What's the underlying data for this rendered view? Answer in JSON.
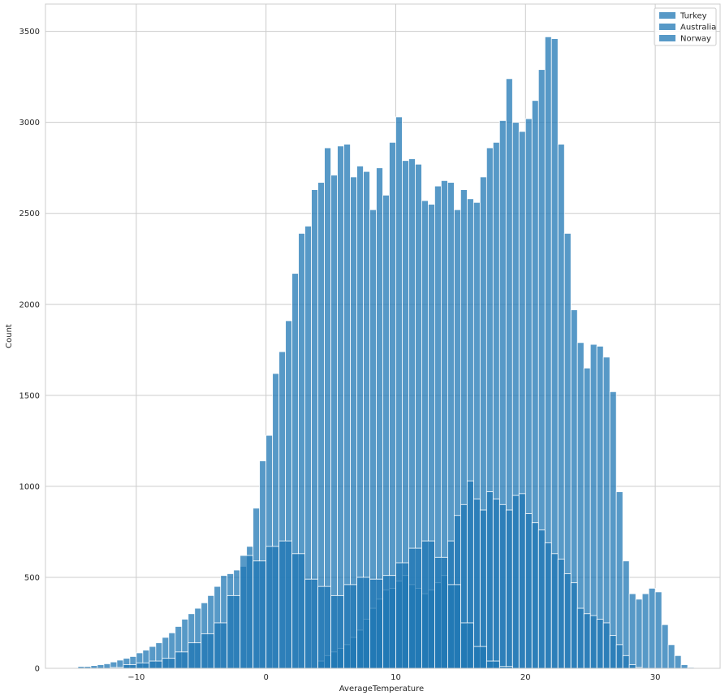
{
  "chart_data": {
    "type": "bar",
    "subtype": "overlaid-histogram",
    "xlabel": "AverageTemperature",
    "ylabel": "Count",
    "xlim": [
      -17,
      35
    ],
    "ylim": [
      0,
      3650
    ],
    "xticks": [
      -10,
      0,
      10,
      20,
      30
    ],
    "yticks": [
      0,
      500,
      1000,
      1500,
      2000,
      2500,
      3000,
      3500
    ],
    "grid": true,
    "legend_position": "top-right",
    "bar_color": "#1f77b4",
    "series": [
      {
        "name": "Turkey",
        "bin_width": 0.5,
        "bins": [
          {
            "x0": -14.5,
            "count": 10
          },
          {
            "x0": -14,
            "count": 10
          },
          {
            "x0": -13.5,
            "count": 15
          },
          {
            "x0": -13,
            "count": 20
          },
          {
            "x0": -12.5,
            "count": 25
          },
          {
            "x0": -12,
            "count": 35
          },
          {
            "x0": -11.5,
            "count": 45
          },
          {
            "x0": -11,
            "count": 55
          },
          {
            "x0": -10.5,
            "count": 65
          },
          {
            "x0": -10,
            "count": 85
          },
          {
            "x0": -9.5,
            "count": 100
          },
          {
            "x0": -9,
            "count": 120
          },
          {
            "x0": -8.5,
            "count": 140
          },
          {
            "x0": -8,
            "count": 170
          },
          {
            "x0": -7.5,
            "count": 195
          },
          {
            "x0": -7,
            "count": 230
          },
          {
            "x0": -6.5,
            "count": 270
          },
          {
            "x0": -6,
            "count": 300
          },
          {
            "x0": -5.5,
            "count": 330
          },
          {
            "x0": -5,
            "count": 360
          },
          {
            "x0": -4.5,
            "count": 400
          },
          {
            "x0": -4,
            "count": 450
          },
          {
            "x0": -3.5,
            "count": 510
          },
          {
            "x0": -3,
            "count": 520
          },
          {
            "x0": -2.5,
            "count": 540
          },
          {
            "x0": -2,
            "count": 560
          },
          {
            "x0": -1.5,
            "count": 670
          },
          {
            "x0": -1,
            "count": 880
          },
          {
            "x0": -0.5,
            "count": 1140
          },
          {
            "x0": 0,
            "count": 1280
          },
          {
            "x0": 0.5,
            "count": 1620
          },
          {
            "x0": 1,
            "count": 1740
          },
          {
            "x0": 1.5,
            "count": 1910
          },
          {
            "x0": 2,
            "count": 2170
          },
          {
            "x0": 2.5,
            "count": 2390
          },
          {
            "x0": 3,
            "count": 2430
          },
          {
            "x0": 3.5,
            "count": 2630
          },
          {
            "x0": 4,
            "count": 2670
          },
          {
            "x0": 4.5,
            "count": 2860
          },
          {
            "x0": 5,
            "count": 2710
          },
          {
            "x0": 5.5,
            "count": 2870
          },
          {
            "x0": 6,
            "count": 2880
          },
          {
            "x0": 6.5,
            "count": 2700
          },
          {
            "x0": 7,
            "count": 2760
          },
          {
            "x0": 7.5,
            "count": 2730
          },
          {
            "x0": 8,
            "count": 2520
          },
          {
            "x0": 8.5,
            "count": 2750
          },
          {
            "x0": 9,
            "count": 2600
          },
          {
            "x0": 9.5,
            "count": 2890
          },
          {
            "x0": 10,
            "count": 3030
          },
          {
            "x0": 10.5,
            "count": 2790
          },
          {
            "x0": 11,
            "count": 2800
          },
          {
            "x0": 11.5,
            "count": 2770
          },
          {
            "x0": 12,
            "count": 2570
          },
          {
            "x0": 12.5,
            "count": 2550
          },
          {
            "x0": 13,
            "count": 2650
          },
          {
            "x0": 13.5,
            "count": 2680
          },
          {
            "x0": 14,
            "count": 2670
          },
          {
            "x0": 14.5,
            "count": 2520
          },
          {
            "x0": 15,
            "count": 2630
          },
          {
            "x0": 15.5,
            "count": 2580
          },
          {
            "x0": 16,
            "count": 2560
          },
          {
            "x0": 16.5,
            "count": 2700
          },
          {
            "x0": 17,
            "count": 2860
          },
          {
            "x0": 17.5,
            "count": 2890
          },
          {
            "x0": 18,
            "count": 3010
          },
          {
            "x0": 18.5,
            "count": 3240
          },
          {
            "x0": 19,
            "count": 3000
          },
          {
            "x0": 19.5,
            "count": 2950
          },
          {
            "x0": 20,
            "count": 3020
          },
          {
            "x0": 20.5,
            "count": 3120
          },
          {
            "x0": 21,
            "count": 3290
          },
          {
            "x0": 21.5,
            "count": 3470
          },
          {
            "x0": 22,
            "count": 3460
          },
          {
            "x0": 22.5,
            "count": 2880
          },
          {
            "x0": 23,
            "count": 2390
          },
          {
            "x0": 23.5,
            "count": 1970
          },
          {
            "x0": 24,
            "count": 1790
          },
          {
            "x0": 24.5,
            "count": 1650
          },
          {
            "x0": 25,
            "count": 1780
          },
          {
            "x0": 25.5,
            "count": 1770
          },
          {
            "x0": 26,
            "count": 1710
          },
          {
            "x0": 26.5,
            "count": 1520
          },
          {
            "x0": 27,
            "count": 970
          },
          {
            "x0": 27.5,
            "count": 590
          },
          {
            "x0": 28,
            "count": 410
          },
          {
            "x0": 28.5,
            "count": 380
          },
          {
            "x0": 29,
            "count": 410
          },
          {
            "x0": 29.5,
            "count": 440
          },
          {
            "x0": 30,
            "count": 420
          },
          {
            "x0": 30.5,
            "count": 240
          },
          {
            "x0": 31,
            "count": 130
          },
          {
            "x0": 31.5,
            "count": 70
          },
          {
            "x0": 32,
            "count": 20
          },
          {
            "x0": 32.5,
            "count": 5
          }
        ]
      },
      {
        "name": "Australia",
        "bin_width": 0.5,
        "bins": [
          {
            "x0": 4,
            "count": 40
          },
          {
            "x0": 4.5,
            "count": 70
          },
          {
            "x0": 5,
            "count": 90
          },
          {
            "x0": 5.5,
            "count": 110
          },
          {
            "x0": 6,
            "count": 130
          },
          {
            "x0": 6.5,
            "count": 170
          },
          {
            "x0": 7,
            "count": 210
          },
          {
            "x0": 7.5,
            "count": 270
          },
          {
            "x0": 8,
            "count": 330
          },
          {
            "x0": 8.5,
            "count": 380
          },
          {
            "x0": 9,
            "count": 430
          },
          {
            "x0": 9.5,
            "count": 440
          },
          {
            "x0": 10,
            "count": 480
          },
          {
            "x0": 10.5,
            "count": 510
          },
          {
            "x0": 11,
            "count": 460
          },
          {
            "x0": 11.5,
            "count": 440
          },
          {
            "x0": 12,
            "count": 410
          },
          {
            "x0": 12.5,
            "count": 430
          },
          {
            "x0": 13,
            "count": 470
          },
          {
            "x0": 13.5,
            "count": 510
          },
          {
            "x0": 14,
            "count": 700
          },
          {
            "x0": 14.5,
            "count": 840
          },
          {
            "x0": 15,
            "count": 900
          },
          {
            "x0": 15.5,
            "count": 1030
          },
          {
            "x0": 16,
            "count": 930
          },
          {
            "x0": 16.5,
            "count": 870
          },
          {
            "x0": 17,
            "count": 970
          },
          {
            "x0": 17.5,
            "count": 930
          },
          {
            "x0": 18,
            "count": 900
          },
          {
            "x0": 18.5,
            "count": 870
          },
          {
            "x0": 19,
            "count": 950
          },
          {
            "x0": 19.5,
            "count": 960
          },
          {
            "x0": 20,
            "count": 850
          },
          {
            "x0": 20.5,
            "count": 800
          },
          {
            "x0": 21,
            "count": 760
          },
          {
            "x0": 21.5,
            "count": 690
          },
          {
            "x0": 22,
            "count": 630
          },
          {
            "x0": 22.5,
            "count": 600
          },
          {
            "x0": 23,
            "count": 520
          },
          {
            "x0": 23.5,
            "count": 470
          },
          {
            "x0": 24,
            "count": 330
          },
          {
            "x0": 24.5,
            "count": 300
          },
          {
            "x0": 25,
            "count": 290
          },
          {
            "x0": 25.5,
            "count": 270
          },
          {
            "x0": 26,
            "count": 250
          },
          {
            "x0": 26.5,
            "count": 180
          },
          {
            "x0": 27,
            "count": 130
          },
          {
            "x0": 27.5,
            "count": 70
          },
          {
            "x0": 28,
            "count": 20
          },
          {
            "x0": 28.5,
            "count": 5
          }
        ]
      },
      {
        "name": "Norway",
        "bin_width": 1.0,
        "bins": [
          {
            "x0": -12,
            "count": 5
          },
          {
            "x0": -11,
            "count": 20
          },
          {
            "x0": -10,
            "count": 30
          },
          {
            "x0": -9,
            "count": 40
          },
          {
            "x0": -8,
            "count": 55
          },
          {
            "x0": -7,
            "count": 90
          },
          {
            "x0": -6,
            "count": 140
          },
          {
            "x0": -5,
            "count": 190
          },
          {
            "x0": -4,
            "count": 250
          },
          {
            "x0": -3,
            "count": 400
          },
          {
            "x0": -2,
            "count": 620
          },
          {
            "x0": -1,
            "count": 590
          },
          {
            "x0": 0,
            "count": 670
          },
          {
            "x0": 1,
            "count": 700
          },
          {
            "x0": 2,
            "count": 630
          },
          {
            "x0": 3,
            "count": 490
          },
          {
            "x0": 4,
            "count": 450
          },
          {
            "x0": 5,
            "count": 400
          },
          {
            "x0": 6,
            "count": 460
          },
          {
            "x0": 7,
            "count": 500
          },
          {
            "x0": 8,
            "count": 490
          },
          {
            "x0": 9,
            "count": 510
          },
          {
            "x0": 10,
            "count": 580
          },
          {
            "x0": 11,
            "count": 660
          },
          {
            "x0": 12,
            "count": 700
          },
          {
            "x0": 13,
            "count": 610
          },
          {
            "x0": 14,
            "count": 460
          },
          {
            "x0": 15,
            "count": 250
          },
          {
            "x0": 16,
            "count": 120
          },
          {
            "x0": 17,
            "count": 40
          },
          {
            "x0": 18,
            "count": 10
          }
        ]
      }
    ]
  }
}
